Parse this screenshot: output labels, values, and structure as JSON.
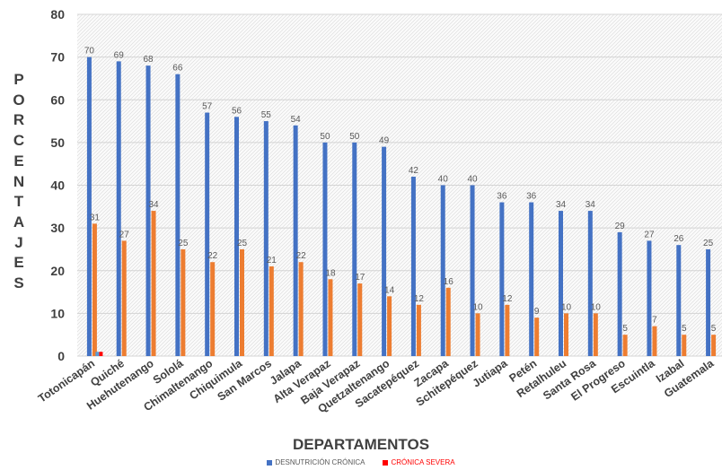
{
  "chart_data": {
    "type": "bar",
    "xlabel": "DEPARTAMENTOS",
    "ylabel": "PORCENTAJES",
    "ylim": [
      0,
      80
    ],
    "yticks": [
      0,
      10,
      20,
      30,
      40,
      50,
      60,
      70,
      80
    ],
    "grid": true,
    "legend_position": "bottom",
    "categories": [
      "Totonicapán",
      "Quiché",
      "Huehutenango",
      "Sololá",
      "Chimaltenango",
      "Chiquimula",
      "San Marcos",
      "Jalapa",
      "Alta Verapaz",
      "Baja Verapaz",
      "Quetzaltenango",
      "Sacatepéquez",
      "Zacapa",
      "Schitepéquez",
      "Jutiapa",
      "Petén",
      "Retalhuleu",
      "Santa Rosa",
      "El Progreso",
      "Escuintla",
      "Izabal",
      "Guatemala"
    ],
    "series": [
      {
        "name": "DESNUTRICIÓN CRÓNICA",
        "color": "#4472C4",
        "values": [
          70,
          69,
          68,
          66,
          57,
          56,
          55,
          54,
          50,
          50,
          49,
          42,
          40,
          40,
          36,
          36,
          34,
          34,
          29,
          27,
          26,
          25
        ],
        "labels": [
          "70",
          "69",
          "68",
          "66",
          "57",
          "56",
          "55",
          "54",
          "50",
          "50",
          "49",
          "42",
          "40",
          "40",
          "36",
          "36",
          "34",
          "34",
          "29",
          "27",
          "26",
          "25"
        ]
      },
      {
        "color": "#ED7D31",
        "values": [
          31,
          27,
          34,
          25,
          22,
          25,
          21,
          22,
          18,
          17,
          14,
          12,
          16,
          10,
          12,
          9,
          10,
          10,
          5,
          7,
          5,
          5
        ],
        "labels": [
          "31",
          "27",
          "34",
          "25",
          "22",
          "25",
          "21",
          "22",
          "18",
          "17",
          "14",
          "12",
          "16",
          "10",
          "12",
          "9",
          "10",
          "10",
          "5",
          "7",
          "5",
          "5"
        ]
      },
      {
        "color": "#5B9BD5",
        "values": [
          1,
          0,
          0,
          0,
          0,
          0,
          0,
          0,
          0,
          0,
          0,
          0,
          0,
          0,
          0,
          0,
          0,
          0,
          0,
          0,
          0,
          0
        ]
      },
      {
        "name": "CRÓNICA SEVERA",
        "color": "#FF0000",
        "values": [
          1,
          0,
          0,
          0,
          0,
          0,
          0,
          0,
          0,
          0,
          0,
          0,
          0,
          0,
          0,
          0,
          0,
          0,
          0,
          0,
          0,
          0
        ]
      }
    ],
    "legend": [
      {
        "name": "DESNUTRICIÓN CRÓNICA",
        "color": "#4472C4"
      },
      {
        "name": "CRÓNICA SEVERA",
        "color": "#FF0000"
      }
    ]
  }
}
